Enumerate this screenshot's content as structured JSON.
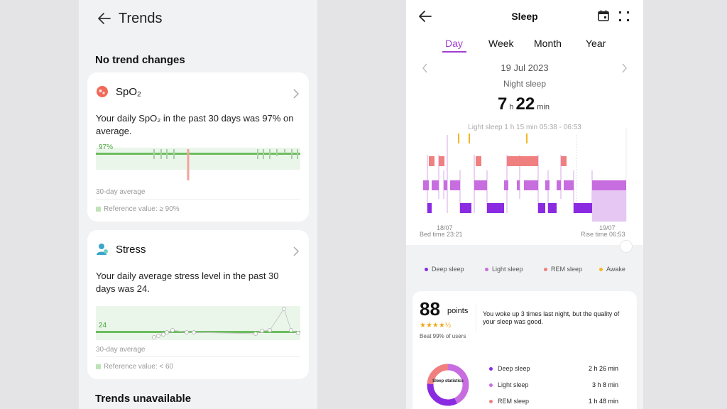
{
  "trends": {
    "title": "Trends",
    "section_no_change": "No trend changes",
    "section_unavailable": "Trends unavailable",
    "spo2": {
      "name": "SpO₂",
      "description": "Your daily SpO₂ in the past 30 days was 97% on average.",
      "average_label": "97%",
      "caption": "30-day average",
      "reference": "Reference value: ≥ 90%"
    },
    "stress": {
      "name": "Stress",
      "description": "Your daily average stress level in the past 30 days was 24.",
      "average_label": "24",
      "caption": "30-day average",
      "reference": "Reference value: < 60"
    }
  },
  "sleep": {
    "title": "Sleep",
    "tabs": [
      "Day",
      "Week",
      "Month",
      "Year"
    ],
    "active_tab": "Day",
    "date": "19 Jul 2023",
    "type": "Night sleep",
    "duration": {
      "hours": "7",
      "h_unit": "h",
      "minutes": "22",
      "min_unit": "min"
    },
    "tooltip": "Light sleep 1 h 15 min 05:38 - 06:53",
    "bed_date": "18/07",
    "bed_time": "Bed time 23:21",
    "rise_date": "19/07",
    "rise_time": "Rise time 06:53",
    "legend": [
      {
        "label": "Deep sleep",
        "color": "#8a2be2"
      },
      {
        "label": "Light sleep",
        "color": "#c86de0"
      },
      {
        "label": "REM sleep",
        "color": "#f07f7f"
      },
      {
        "label": "Awake",
        "color": "#f5b623"
      }
    ],
    "score": {
      "value": "88",
      "unit": "points",
      "stars": "★★★★½",
      "beat": "Beat 99% of users",
      "message": "You woke up 3 times last night, but the quality of your sleep was good."
    },
    "statistics_label": "Sleep statistics",
    "stats": [
      {
        "name": "Deep sleep",
        "value": "2 h 26 min",
        "color": "#8a2be2"
      },
      {
        "name": "Light sleep",
        "value": "3 h 8 min",
        "color": "#c86de0"
      },
      {
        "name": "REM sleep",
        "value": "1 h 48 min",
        "color": "#f07f7f"
      }
    ]
  },
  "colors": {
    "accent": "#a23fd1",
    "deep": "#8a2be2",
    "light": "#c86de0",
    "rem": "#f07f7f",
    "awake": "#f5b623",
    "trend_green": "#6cbd5e"
  },
  "icons": {
    "back": "arrow-left-icon",
    "calendar": "calendar-icon",
    "more": "expand-icon",
    "chevron": "chevron-right-icon",
    "spo2": "spo2-icon",
    "stress": "stress-icon"
  }
}
